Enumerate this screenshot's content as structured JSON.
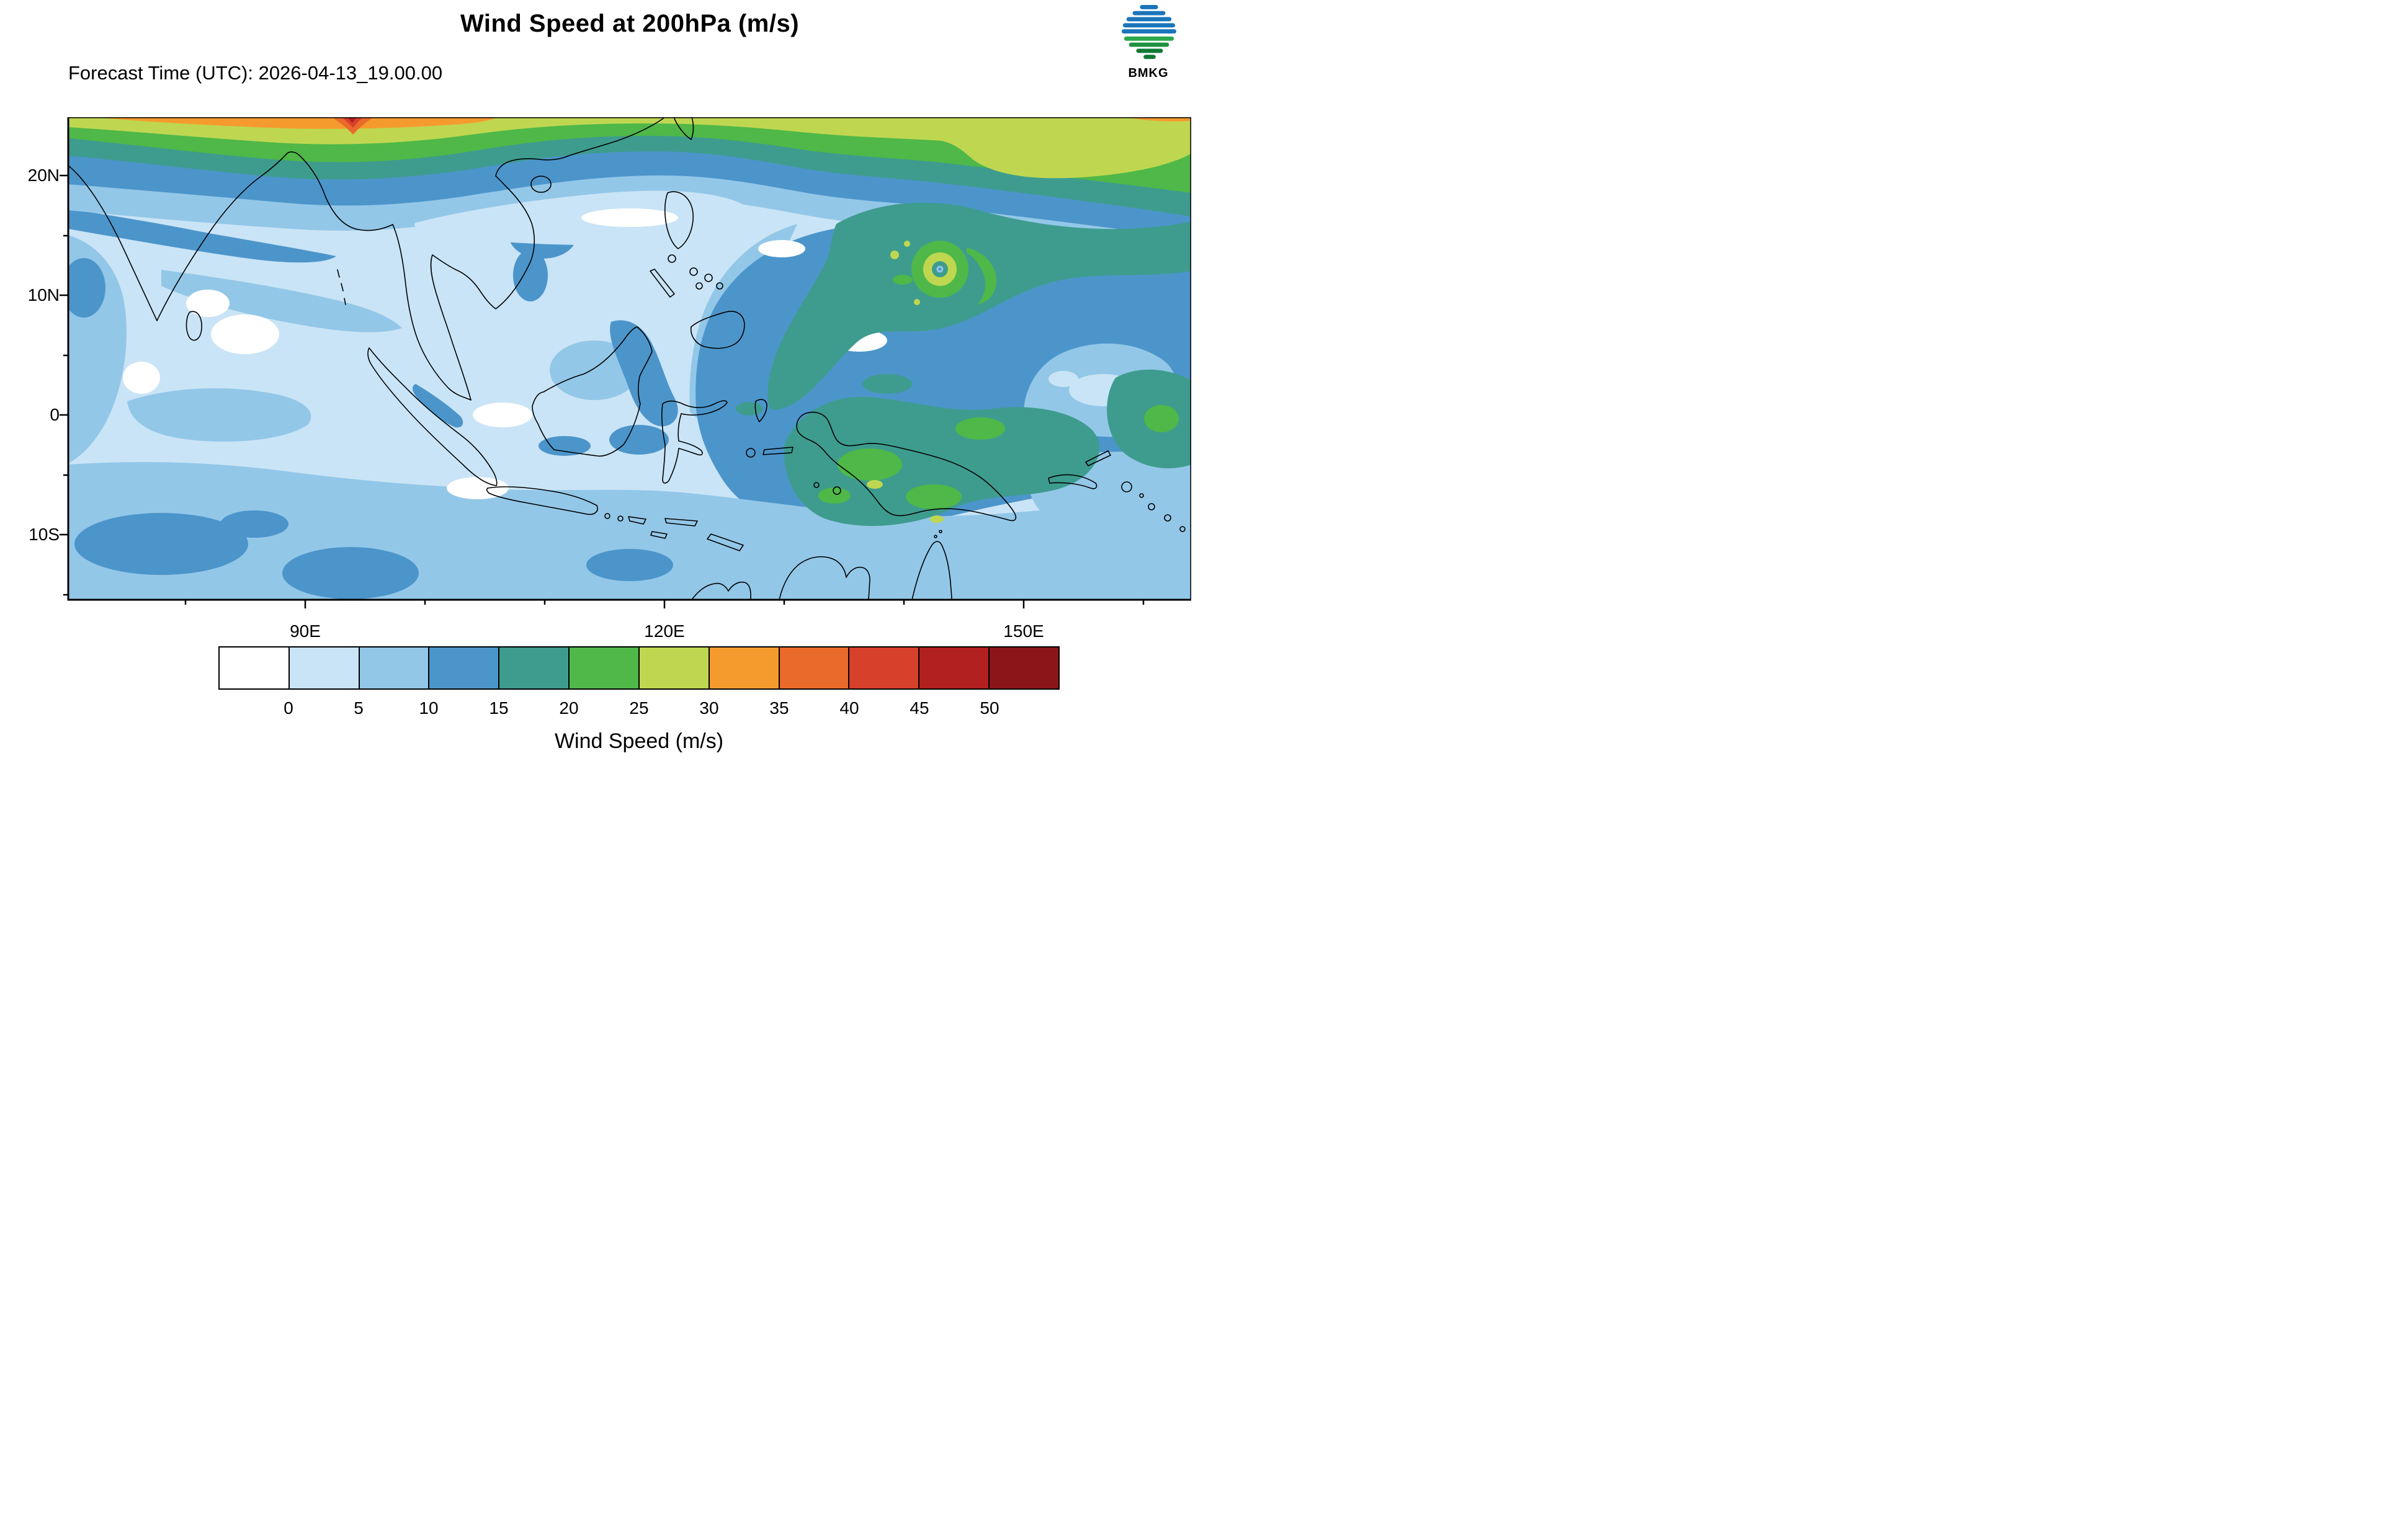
{
  "header": {
    "title": "Wind Speed at 200hPa (m/s)",
    "forecast_time": "Forecast Time (UTC): 2026-04-13_19.00.00",
    "logo_text": "BMKG"
  },
  "map": {
    "lat_ticks": [
      "20N",
      "10N",
      "0",
      "10S"
    ],
    "lon_ticks": [
      "90E",
      "120E",
      "150E"
    ]
  },
  "colorbar": {
    "title": "Wind Speed (m/s)",
    "tick_values": [
      "0",
      "5",
      "10",
      "15",
      "20",
      "25",
      "30",
      "35",
      "40",
      "45",
      "50"
    ],
    "colors": [
      "#FFFFFF",
      "#C9E4F6",
      "#93C7E8",
      "#4C95CB",
      "#3E9C8E",
      "#4FB848",
      "#BFD750",
      "#F59B2E",
      "#EA6A2B",
      "#D7402B",
      "#B2201F",
      "#8A1619"
    ]
  },
  "chart_data": {
    "type": "heatmap",
    "title": "Wind Speed at 200hPa (m/s)",
    "subtitle": "Forecast Time (UTC): 2026-04-13_19.00.00",
    "variable": "wind speed",
    "pressure_level": "200hPa",
    "units": "m/s",
    "x_axis": {
      "tick_labels": [
        "90E",
        "120E",
        "150E"
      ],
      "range_approx_deg_east": [
        70,
        164
      ]
    },
    "y_axis": {
      "tick_labels": [
        "20N",
        "10N",
        "0",
        "10S"
      ],
      "range_approx_deg_north": [
        -15.5,
        25
      ]
    },
    "contour_levels": [
      0,
      5,
      10,
      15,
      20,
      25,
      30,
      35,
      40,
      45,
      50
    ],
    "palette": [
      "#FFFFFF",
      "#C9E4F6",
      "#93C7E8",
      "#4C95CB",
      "#3E9C8E",
      "#4FB848",
      "#BFD750",
      "#F59B2E",
      "#EA6A2B",
      "#D7402B",
      "#B2201F",
      "#8A1619"
    ],
    "colorbar_label": "Wind Speed (m/s)",
    "grid": false,
    "legend_position": "bottom",
    "features": [
      {
        "name": "subtropical-jet",
        "description": "Band of 25-50+ m/s winds along the northern edge (~22-25N) across the full map width, strongest (>40 m/s) near 94E at the top edge"
      },
      {
        "name": "tropical-cyclone",
        "description": "Circular wind maximum of 20-30 m/s centered near 143E, 12.5N with a calm central eye"
      },
      {
        "name": "western-pacific-flow",
        "description": "Broad 10-25 m/s region east of the Philippines extending southeast over New Guinea and the far western Pacific"
      },
      {
        "name": "light-wind-region",
        "description": "0-10 m/s winds over most of the Indian Ocean and the Maritime Continent"
      }
    ]
  }
}
